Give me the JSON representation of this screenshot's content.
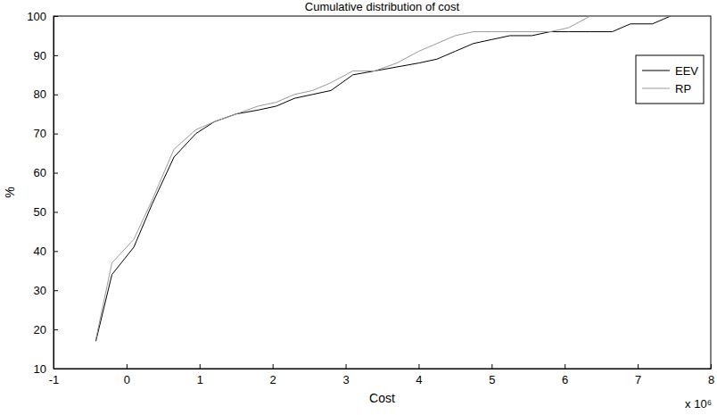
{
  "chart_data": {
    "type": "line",
    "title": "Cumulative distribution of cost",
    "x_label": "Cost",
    "y_label": "%",
    "annotations": [
      "x 10⁶"
    ],
    "x": [
      -0.42,
      -0.2,
      0.1,
      0.35,
      0.65,
      0.95,
      1.2,
      1.5,
      1.8,
      2.05,
      2.3,
      2.55,
      2.8,
      3.1,
      3.4,
      3.7,
      4.0,
      4.25,
      4.5,
      4.75,
      5.0,
      5.25,
      5.55,
      5.8,
      6.05,
      6.35,
      6.65,
      6.9,
      7.2,
      7.45
    ],
    "series": [
      {
        "name": "EEV",
        "color": "#000000",
        "values": [
          17,
          34,
          41,
          52,
          64,
          70,
          73,
          75,
          76,
          77,
          79,
          80,
          81,
          85,
          86,
          87,
          88,
          89,
          91,
          93,
          94,
          95,
          95,
          96,
          96,
          96,
          96,
          98,
          98,
          100
        ]
      },
      {
        "name": "RP",
        "color": "#9a9a9a",
        "values": [
          17.5,
          37,
          43,
          53,
          66,
          71,
          73,
          75,
          77,
          78,
          80,
          81,
          83,
          86,
          86,
          88,
          91,
          93,
          95,
          96,
          96,
          96,
          96,
          96,
          97,
          100,
          100,
          100,
          100,
          100
        ]
      }
    ],
    "xlim": [
      -1,
      8
    ],
    "xticks": [
      -1,
      0,
      1,
      2,
      3,
      4,
      5,
      6,
      7,
      8
    ],
    "ylim": [
      10,
      100
    ],
    "yticks": [
      10,
      20,
      30,
      40,
      50,
      60,
      70,
      80,
      90,
      100
    ],
    "legend": "northeast",
    "grid": false
  }
}
